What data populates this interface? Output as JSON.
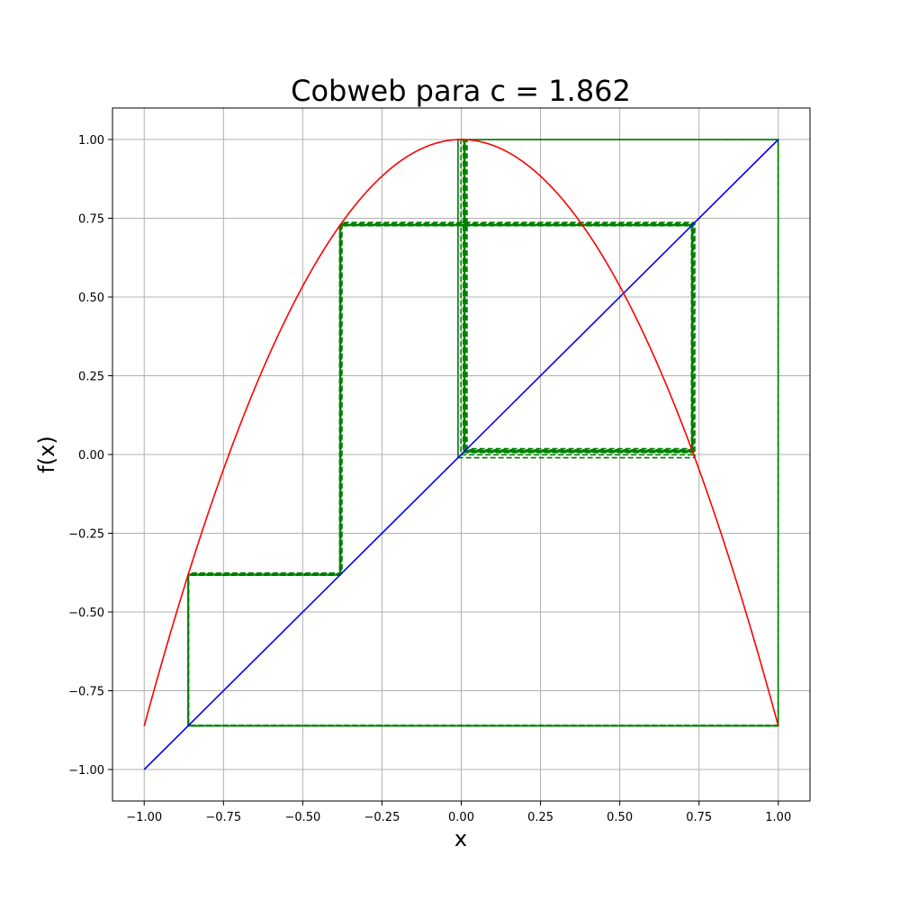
{
  "chart_data": {
    "type": "line",
    "title": "Cobweb para c = 1.862",
    "xlabel": "x",
    "ylabel": "f(x)",
    "xlim": [
      -1.1,
      1.1
    ],
    "ylim": [
      -1.1,
      1.1
    ],
    "grid": true,
    "legend": "none",
    "c": 1.862,
    "x_ticks": [
      -1.0,
      -0.75,
      -0.5,
      -0.25,
      0.0,
      0.25,
      0.5,
      0.75,
      1.0
    ],
    "x_tick_labels": [
      "−1.00",
      "−0.75",
      "−0.50",
      "−0.25",
      "0.00",
      "0.25",
      "0.50",
      "0.75",
      "1.00"
    ],
    "y_ticks": [
      1.0,
      0.75,
      0.5,
      0.25,
      0.0,
      -0.25,
      -0.5,
      -0.75,
      -1.0
    ],
    "y_tick_labels": [
      "1.00",
      "0.75",
      "0.50",
      "0.25",
      "0.00",
      "−0.25",
      "−0.50",
      "−0.75",
      "−1.00"
    ],
    "series": [
      {
        "role": "map",
        "formula": "f(x) = 1 - c*x^2",
        "domain": [
          -1.0,
          1.0
        ],
        "color": "#ff0000",
        "style": "solid"
      },
      {
        "role": "identity",
        "formula": "y = x",
        "domain": [
          -1.0,
          1.0
        ],
        "color": "#0000ff",
        "style": "solid"
      },
      {
        "role": "cobweb",
        "x0": -0.01,
        "iterations": 60,
        "color": "#008000",
        "style": "dashed"
      }
    ]
  },
  "colors": {
    "map": "#ff0000",
    "identity": "#0000ff",
    "cobweb": "#008000",
    "grid": "#b0b0b0"
  }
}
